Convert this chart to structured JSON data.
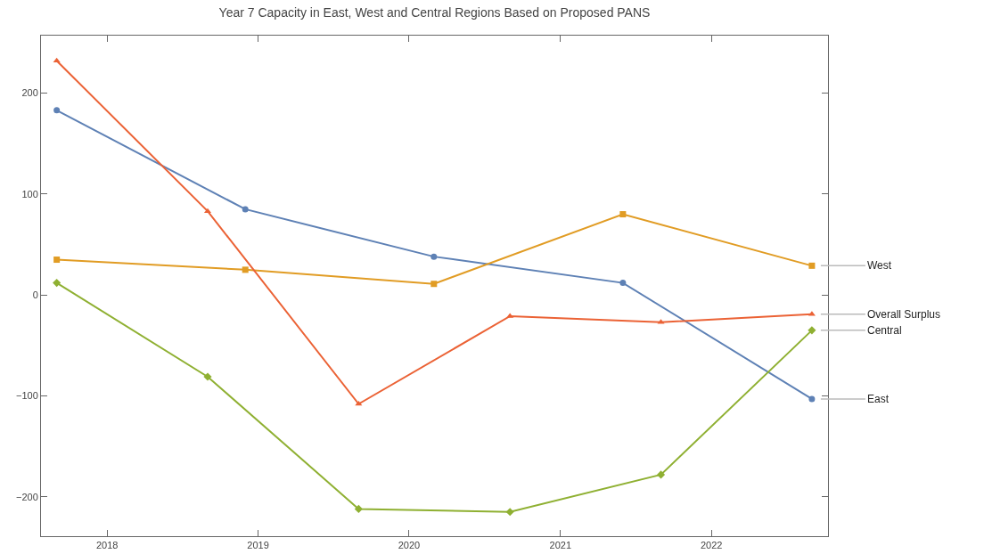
{
  "chart_data": {
    "type": "line",
    "title": "Year 7 Capacity in East, West and Central Regions Based on Proposed PANS",
    "xlim": [
      "2017-07-25",
      "2022-10-10"
    ],
    "ylim": [
      -239,
      257
    ],
    "xticks": [
      {
        "value": "2018-01-01",
        "label": "2018"
      },
      {
        "value": "2019-01-01",
        "label": "2019"
      },
      {
        "value": "2020-01-01",
        "label": "2020"
      },
      {
        "value": "2021-01-01",
        "label": "2021"
      },
      {
        "value": "2022-01-01",
        "label": "2022"
      }
    ],
    "yticks": [
      -200,
      -100,
      0,
      100,
      200
    ],
    "grid": false,
    "legend": false,
    "series": [
      {
        "name": "East",
        "color": "#5e81b5",
        "marker": "circle",
        "x": [
          "2017-09-01",
          "2018-12-01",
          "2020-03-01",
          "2021-06-01",
          "2022-09-01"
        ],
        "values": [
          183,
          85,
          38,
          12,
          -103
        ]
      },
      {
        "name": "West",
        "color": "#e19c24",
        "marker": "square",
        "x": [
          "2017-09-01",
          "2018-12-01",
          "2020-03-01",
          "2021-06-01",
          "2022-09-01"
        ],
        "values": [
          35,
          25,
          11,
          80,
          29
        ]
      },
      {
        "name": "Central",
        "color": "#8fb032",
        "marker": "diamond",
        "x": [
          "2017-09-01",
          "2018-09-01",
          "2019-09-01",
          "2020-09-01",
          "2021-09-01",
          "2022-09-01"
        ],
        "values": [
          12,
          -81,
          -212,
          -215,
          -178,
          -35
        ]
      },
      {
        "name": "Overall Surplus",
        "color": "#eb6235",
        "marker": "triangle",
        "x": [
          "2017-09-01",
          "2018-09-01",
          "2019-09-01",
          "2020-09-01",
          "2021-09-01",
          "2022-09-01"
        ],
        "values": [
          232,
          83,
          -108,
          -21,
          -27,
          -19
        ]
      }
    ]
  }
}
